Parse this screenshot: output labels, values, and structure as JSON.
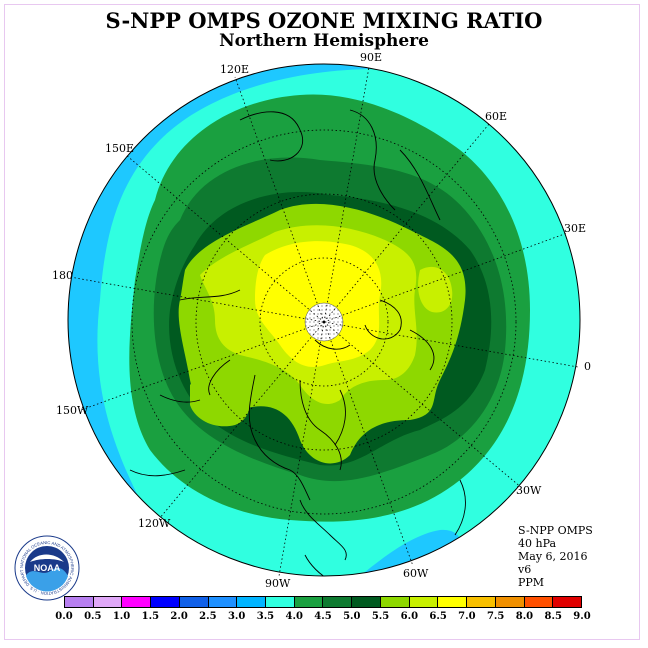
{
  "title": "S-NPP OMPS OZONE MIXING RATIO",
  "subtitle": "Northern Hemisphere",
  "info": [
    "S-NPP OMPS",
    "40 hPa",
    "May 6, 2016",
    "v6",
    "PPM"
  ],
  "longitude_labels": [
    "90E",
    "60E",
    "30E",
    "0",
    "30W",
    "60W",
    "90W",
    "120W",
    "150W",
    "180",
    "150E",
    "120E"
  ],
  "colorbar": {
    "labels": [
      "0.0",
      "0.5",
      "1.0",
      "1.5",
      "2.0",
      "2.5",
      "3.0",
      "3.5",
      "4.0",
      "4.5",
      "5.0",
      "5.5",
      "6.0",
      "6.5",
      "7.0",
      "7.5",
      "8.0",
      "8.5",
      "9.0"
    ],
    "colors": [
      "#b77ff0",
      "#e0a8f8",
      "#ff00ff",
      "#0000ff",
      "#1060e8",
      "#1e90ff",
      "#00b4ff",
      "#30ffe0",
      "#1aa040",
      "#0e7a30",
      "#005a20",
      "#8ed800",
      "#c8f000",
      "#ffff00",
      "#f8c000",
      "#f09000",
      "#ff5000",
      "#e00000",
      "#805030"
    ]
  },
  "logo": {
    "text": "NOAA",
    "ring_text": "NATIONAL OCEANIC AND ATMOSPHERIC ADMINISTRATION · U.S. DEPARTMENT OF COMMERCE"
  }
}
